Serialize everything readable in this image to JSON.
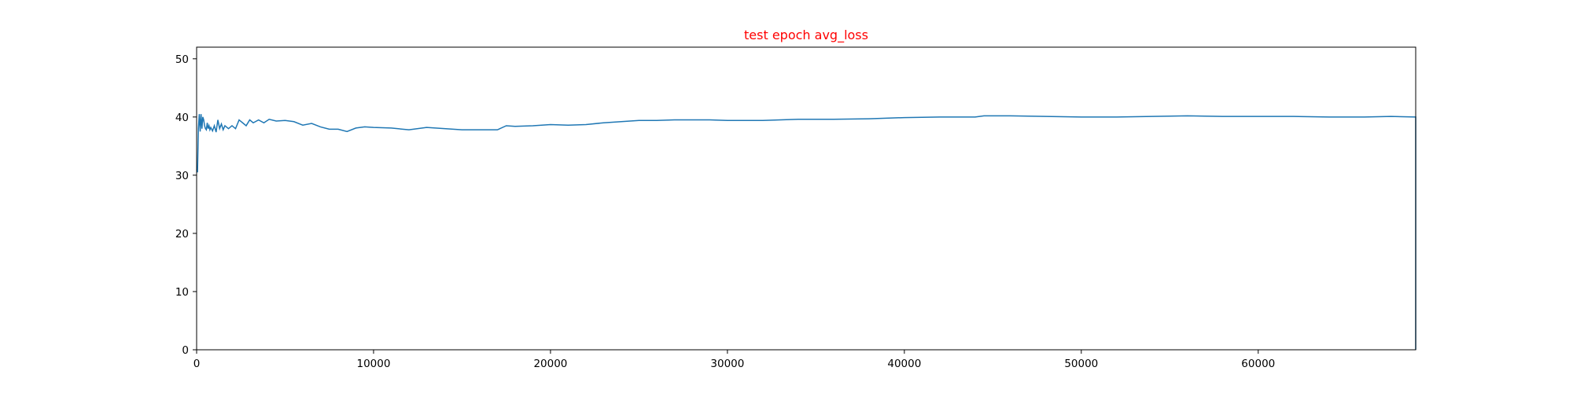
{
  "chart_data": {
    "type": "line",
    "title": "test epoch avg_loss",
    "title_color": "#ff0000",
    "xlabel": "",
    "ylabel": "",
    "xlim": [
      0,
      68900
    ],
    "ylim": [
      0,
      52
    ],
    "grid": false,
    "line_color": "#1f77b4",
    "xticks": [
      0,
      10000,
      20000,
      30000,
      40000,
      50000,
      60000
    ],
    "yticks": [
      0,
      10,
      20,
      30,
      40,
      50
    ],
    "series": [
      {
        "x": [
          0,
          50,
          100,
          150,
          200,
          250,
          300,
          350,
          400,
          450,
          500,
          550,
          600,
          650,
          700,
          750,
          800,
          900,
          1000,
          1100,
          1200,
          1300,
          1400,
          1500,
          1600,
          1800,
          2000,
          2200,
          2400,
          2600,
          2800,
          3000,
          3200,
          3500,
          3800,
          4100,
          4500,
          5000,
          5500,
          6000,
          6500,
          7000,
          7500,
          8000,
          8500,
          9000,
          9500,
          10000,
          11000,
          12000,
          13000,
          14000,
          15000,
          16000,
          17000,
          17500,
          18000,
          19000,
          20000,
          21000,
          22000,
          23000,
          24000,
          25000,
          26000,
          27000,
          28000,
          29000,
          30000,
          32000,
          34000,
          36000,
          38000,
          40000,
          42000,
          44000,
          44500,
          46000,
          48000,
          50000,
          52000,
          54000,
          56000,
          58000,
          60000,
          62000,
          64000,
          66000,
          67500,
          68900,
          68900
        ],
        "y": [
          31,
          30.5,
          38,
          40.5,
          37.5,
          40.5,
          38,
          40,
          39.5,
          38.5,
          38,
          37.8,
          39,
          38,
          38.5,
          37.8,
          38.2,
          37.6,
          38.5,
          37.4,
          39.5,
          38,
          38.8,
          37.8,
          38.5,
          38,
          38.5,
          38,
          39.5,
          39,
          38.5,
          39.5,
          39,
          39.5,
          39,
          39.6,
          39.3,
          39.4,
          39.2,
          38.6,
          38.9,
          38.3,
          37.9,
          37.9,
          37.5,
          38.1,
          38.3,
          38.2,
          38.1,
          37.8,
          38.2,
          38.0,
          37.8,
          37.8,
          37.8,
          38.5,
          38.4,
          38.5,
          38.7,
          38.6,
          38.7,
          39.0,
          39.2,
          39.4,
          39.4,
          39.5,
          39.5,
          39.5,
          39.4,
          39.4,
          39.6,
          39.6,
          39.7,
          39.9,
          40.0,
          40.0,
          40.2,
          40.2,
          40.1,
          40.0,
          40.0,
          40.1,
          40.2,
          40.1,
          40.1,
          40.1,
          40.0,
          40.0,
          40.1,
          40.0,
          0
        ]
      }
    ]
  }
}
